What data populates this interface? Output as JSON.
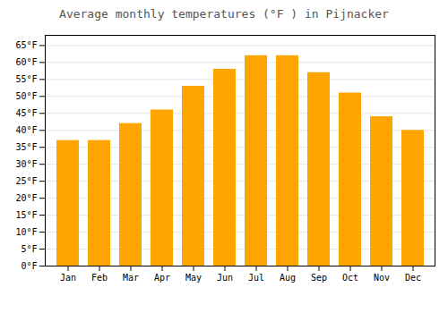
{
  "chart_data": {
    "type": "bar",
    "title": "Average monthly temperatures (°F ) in Pijnacker",
    "categories": [
      "Jan",
      "Feb",
      "Mar",
      "Apr",
      "May",
      "Jun",
      "Jul",
      "Aug",
      "Sep",
      "Oct",
      "Nov",
      "Dec"
    ],
    "values": [
      37,
      37,
      42,
      46,
      53,
      58,
      62,
      62,
      57,
      51,
      44,
      40
    ],
    "color": "#FFA500",
    "ylim": [
      0,
      68
    ],
    "yticks": [
      {
        "value": 0,
        "label": "0°F"
      },
      {
        "value": 5,
        "label": "5°F"
      },
      {
        "value": 10,
        "label": "10°F"
      },
      {
        "value": 15,
        "label": "15°F"
      },
      {
        "value": 20,
        "label": "20°F"
      },
      {
        "value": 25,
        "label": "25°F"
      },
      {
        "value": 30,
        "label": "30°F"
      },
      {
        "value": 35,
        "label": "35°F"
      },
      {
        "value": 40,
        "label": "40°F"
      },
      {
        "value": 45,
        "label": "45°F"
      },
      {
        "value": 50,
        "label": "50°F"
      },
      {
        "value": 55,
        "label": "55°F"
      },
      {
        "value": 60,
        "label": "60°F"
      },
      {
        "value": 65,
        "label": "65°F"
      }
    ],
    "grid": true
  }
}
